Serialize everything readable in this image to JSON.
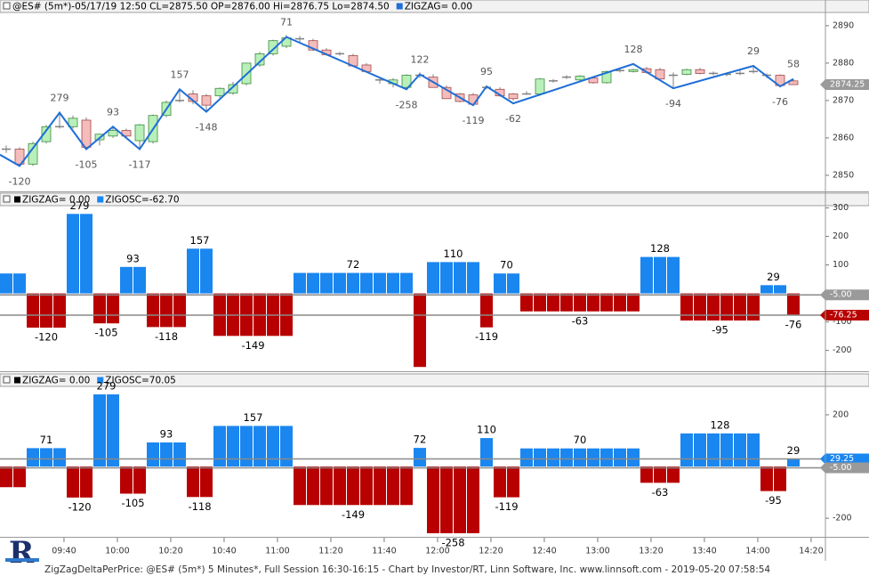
{
  "logo": "R",
  "footer": "ZigZagDeltaPerPrice: @ES# (5m*) 5 Minutes*, Full Session 16:30-16:15 - Chart by Investor/RT, Linn Software, Inc. www.linnsoft.com - 2019-05-20 07:58:54",
  "xaxis": {
    "xlim": [
      -0.467,
      61.4
    ],
    "xticks": [
      {
        "value": 4.33,
        "label": "09:40"
      },
      {
        "value": 8.33,
        "label": "10:00"
      },
      {
        "value": 12.33,
        "label": "10:20"
      },
      {
        "value": 16.33,
        "label": "10:40"
      },
      {
        "value": 20.33,
        "label": "11:00"
      },
      {
        "value": 24.33,
        "label": "11:20"
      },
      {
        "value": 28.33,
        "label": "11:40"
      },
      {
        "value": 32.33,
        "label": "12:00"
      },
      {
        "value": 36.33,
        "label": "12:20"
      },
      {
        "value": 40.33,
        "label": "12:40"
      },
      {
        "value": 44.33,
        "label": "13:00"
      },
      {
        "value": 48.33,
        "label": "13:20"
      },
      {
        "value": 52.33,
        "label": "13:40"
      },
      {
        "value": 56.33,
        "label": "14:00"
      },
      {
        "value": 60.33,
        "label": "14:20"
      }
    ]
  },
  "chart_data": [
    {
      "type": "candlestick",
      "title": "@ES# (5m*)-05/17/19 12:50 CL=2875.50 OP=2876.00 Hi=2876.75 Lo=2874.50",
      "legend": [
        {
          "name": "ZIGZAG= 0.00",
          "color": "#1f6fd6"
        }
      ],
      "up_color": "#b9f0b9",
      "down_color": "#f5bcbc",
      "ohlc": [
        [
          2857,
          2858,
          2856,
          2857
        ],
        [
          2857,
          2857.5,
          2852.5,
          2853
        ],
        [
          2853,
          2859,
          2852.5,
          2858.5
        ],
        [
          2859,
          2863.5,
          2858.5,
          2863
        ],
        [
          2863,
          2866.75,
          2862.5,
          2863
        ],
        [
          2863,
          2866,
          2862.5,
          2865.25
        ],
        [
          2864.75,
          2865.5,
          2857,
          2857.5
        ],
        [
          2859.5,
          2861,
          2858,
          2861
        ],
        [
          2860.5,
          2863,
          2860,
          2862
        ],
        [
          2862,
          2862.5,
          2860,
          2860.5
        ],
        [
          2859.25,
          2863.75,
          2857,
          2863.5
        ],
        [
          2859,
          2866.25,
          2858.5,
          2866
        ],
        [
          2866,
          2870,
          2865.5,
          2869.5
        ],
        [
          2870,
          2873,
          2869.5,
          2870
        ],
        [
          2871.75,
          2872.75,
          2869,
          2869.75
        ],
        [
          2871.25,
          2871.75,
          2867,
          2868.75
        ],
        [
          2871.25,
          2873.5,
          2870.75,
          2873.25
        ],
        [
          2872,
          2875,
          2871.5,
          2874.25
        ],
        [
          2874.5,
          2880,
          2874,
          2880
        ],
        [
          2879.5,
          2883,
          2879,
          2882.5
        ],
        [
          2882.5,
          2886.25,
          2882,
          2886
        ],
        [
          2884.5,
          2887.5,
          2884,
          2886.75
        ],
        [
          2886.5,
          2887.25,
          2885.5,
          2886.5
        ],
        [
          2886,
          2886.5,
          2883.25,
          2883.5
        ],
        [
          2883.5,
          2884,
          2882,
          2882.25
        ],
        [
          2882.5,
          2883,
          2882,
          2882.5
        ],
        [
          2882,
          2882.5,
          2879,
          2879.25
        ],
        [
          2879.5,
          2880,
          2877.5,
          2877.75
        ],
        [
          2875.5,
          2876,
          2874.5,
          2875.5
        ],
        [
          2874.5,
          2876,
          2873.5,
          2875.5
        ],
        [
          2873.5,
          2877,
          2873,
          2876.75
        ],
        [
          2876.75,
          2877.5,
          2876,
          2876.75
        ],
        [
          2876.25,
          2877,
          2873.5,
          2873.5
        ],
        [
          2873.5,
          2874,
          2870.5,
          2870.5
        ],
        [
          2871.75,
          2872,
          2869.5,
          2869.75
        ],
        [
          2871.5,
          2872,
          2869,
          2869
        ],
        [
          2873.5,
          2874,
          2873,
          2873.5
        ],
        [
          2873,
          2873.5,
          2871,
          2871.25
        ],
        [
          2871.75,
          2872,
          2870,
          2870.5
        ],
        [
          2871.75,
          2872.5,
          2871.5,
          2871.75
        ],
        [
          2871.75,
          2876,
          2871.25,
          2875.75
        ],
        [
          2875.25,
          2875.75,
          2874.75,
          2875.25
        ],
        [
          2876.25,
          2876.75,
          2875.75,
          2876.25
        ],
        [
          2875.5,
          2876.75,
          2875,
          2876.5
        ],
        [
          2876,
          2876.5,
          2874.5,
          2874.75
        ],
        [
          2874.75,
          2878,
          2874.5,
          2877.75
        ],
        [
          2878,
          2878.5,
          2877.5,
          2878
        ],
        [
          2877.75,
          2878.5,
          2877.5,
          2878.25
        ],
        [
          2878.5,
          2879,
          2877.25,
          2877.5
        ],
        [
          2878.25,
          2878.75,
          2875.75,
          2875.75
        ],
        [
          2876.75,
          2877.5,
          2873.5,
          2876.75
        ],
        [
          2877,
          2878.5,
          2876.75,
          2878.25
        ],
        [
          2878.25,
          2878.75,
          2877,
          2877.25
        ],
        [
          2877.25,
          2877.75,
          2876.75,
          2877.25
        ],
        [
          2877,
          2877.5,
          2876.5,
          2877
        ],
        [
          2877.25,
          2878,
          2876.75,
          2877.25
        ],
        [
          2877.75,
          2879.25,
          2877.25,
          2877.75
        ],
        [
          2876.75,
          2877.25,
          2876,
          2876.75
        ],
        [
          2876.75,
          2877,
          2873.75,
          2874
        ],
        [
          2875.25,
          2875.75,
          2874.25,
          2874.25
        ]
      ],
      "zigzag": {
        "color": "#1f6fd6",
        "points": [
          {
            "x": -0.47,
            "price": 2855.5
          },
          {
            "x": 1,
            "price": 2852.5,
            "delta": -120
          },
          {
            "x": 4,
            "price": 2866.75,
            "delta": 279
          },
          {
            "x": 6,
            "price": 2857,
            "delta": -105
          },
          {
            "x": 8,
            "price": 2863,
            "delta": 93
          },
          {
            "x": 10,
            "price": 2857,
            "delta": -117
          },
          {
            "x": 13,
            "price": 2873,
            "delta": 157
          },
          {
            "x": 15,
            "price": 2867,
            "delta": -148
          },
          {
            "x": 21,
            "price": 2887,
            "delta": 71
          },
          {
            "x": 30,
            "price": 2873,
            "delta": -258
          },
          {
            "x": 31,
            "price": 2877,
            "delta": 122
          },
          {
            "x": 35,
            "price": 2868.75,
            "delta": -119
          },
          {
            "x": 36,
            "price": 2873.75,
            "delta": 95
          },
          {
            "x": 38,
            "price": 2869.25,
            "delta": -62
          },
          {
            "x": 47,
            "price": 2879.75,
            "delta": 128
          },
          {
            "x": 50,
            "price": 2873.25,
            "delta": -94
          },
          {
            "x": 56,
            "price": 2879.25,
            "delta": 29
          },
          {
            "x": 58,
            "price": 2873.75,
            "delta": -76
          },
          {
            "x": 59,
            "price": 2875.75,
            "delta": 58
          }
        ]
      },
      "ylim": [
        2845.7,
        2893.3
      ],
      "yticks": [
        2850,
        2860,
        2870,
        2880,
        2890
      ],
      "markers": [
        {
          "value": 2874.25,
          "label": "2874.25",
          "color": "#9a9a9a"
        }
      ]
    },
    {
      "type": "bar",
      "legend": [
        {
          "name": "ZIGZAG= 0.00",
          "color": "#000000"
        },
        {
          "name": "ZIGOSC=-62.70",
          "color": "#1a86f0"
        }
      ],
      "positive_color": "#1a86f0",
      "negative_color": "#b80000",
      "segments": [
        {
          "value": 70,
          "count": 2
        },
        {
          "value": -120,
          "count": 3,
          "label": "-120"
        },
        {
          "value": 279,
          "count": 2,
          "label": "279"
        },
        {
          "value": -105,
          "count": 2,
          "label": "-105"
        },
        {
          "value": 93,
          "count": 2,
          "label": "93"
        },
        {
          "value": -118,
          "count": 3,
          "label": "-118"
        },
        {
          "value": 157,
          "count": 2,
          "label": "157"
        },
        {
          "value": -149,
          "count": 6,
          "label": "-149"
        },
        {
          "value": 72,
          "count": 9,
          "label": "72"
        },
        {
          "value": -258,
          "count": 1
        },
        {
          "value": 110,
          "count": 4,
          "label": "110"
        },
        {
          "value": -119,
          "count": 1,
          "label": "-119"
        },
        {
          "value": 70,
          "count": 2,
          "label": "70"
        },
        {
          "value": -63,
          "count": 9,
          "label": "-63"
        },
        {
          "value": 128,
          "count": 3,
          "label": "128"
        },
        {
          "value": -95,
          "count": 6,
          "label": "-95"
        },
        {
          "value": 29,
          "count": 2,
          "label": "29"
        },
        {
          "value": -76,
          "count": 1,
          "label": "-76"
        }
      ],
      "ylim": [
        -273,
        308
      ],
      "yticks": [
        300,
        200,
        100,
        -100,
        -200
      ],
      "markers": [
        {
          "value": -5,
          "label": "-5.00",
          "color": "#9a9a9a"
        },
        {
          "value": -76.25,
          "label": "-76.25",
          "color": "#b80000"
        }
      ]
    },
    {
      "type": "bar",
      "legend": [
        {
          "name": "ZIGZAG= 0.00",
          "color": "#000000"
        },
        {
          "name": "ZIGOSC=70.05",
          "color": "#1a86f0"
        }
      ],
      "positive_color": "#1a86f0",
      "negative_color": "#b80000",
      "segments": [
        {
          "value": -80,
          "count": 2
        },
        {
          "value": 71,
          "count": 3,
          "label": "71"
        },
        {
          "value": -120,
          "count": 2,
          "label": "-120"
        },
        {
          "value": 279,
          "count": 2,
          "label": "279"
        },
        {
          "value": -105,
          "count": 2,
          "label": "-105"
        },
        {
          "value": 93,
          "count": 3,
          "label": "93"
        },
        {
          "value": -118,
          "count": 2,
          "label": "-118"
        },
        {
          "value": 157,
          "count": 6,
          "label": "157"
        },
        {
          "value": -149,
          "count": 9,
          "label": "-149"
        },
        {
          "value": 72,
          "count": 1,
          "label": "72"
        },
        {
          "value": -258,
          "count": 4,
          "label": "-258"
        },
        {
          "value": 110,
          "count": 1,
          "label": "110"
        },
        {
          "value": -119,
          "count": 2,
          "label": "-119"
        },
        {
          "value": 70,
          "count": 9,
          "label": "70"
        },
        {
          "value": -63,
          "count": 3,
          "label": "-63"
        },
        {
          "value": 128,
          "count": 6,
          "label": "128"
        },
        {
          "value": -95,
          "count": 2,
          "label": "-95"
        },
        {
          "value": 29,
          "count": 1,
          "label": "29"
        }
      ],
      "ylim": [
        -272,
        310
      ],
      "yticks": [
        200,
        -200
      ],
      "markers": [
        {
          "value": 29.25,
          "label": "29.25",
          "color": "#1a86f0"
        },
        {
          "value": -5,
          "label": "-5.00",
          "color": "#9a9a9a"
        }
      ]
    }
  ]
}
